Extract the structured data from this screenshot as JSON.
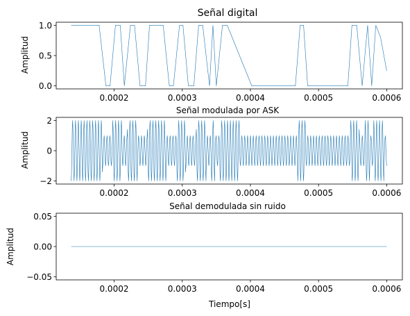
{
  "chart_data": [
    {
      "type": "line",
      "title": "Señal digital",
      "xlabel": "",
      "ylabel": "Amplitud",
      "xlim": [
        0.000115,
        0.000623
      ],
      "ylim": [
        -0.05,
        1.05
      ],
      "xticks": [
        "0.0002",
        "0.0003",
        "0.0004",
        "0.0005",
        "0.0006"
      ],
      "xtick_values": [
        0.0002,
        0.0003,
        0.0004,
        0.0005,
        0.0006
      ],
      "yticks": [
        "0.0",
        "0.5",
        "1.0"
      ],
      "ytick_values": [
        0.0,
        0.5,
        1.0
      ],
      "color": "#1f77b4",
      "series": [
        {
          "x": [
            0.000137,
            0.000178,
            0.000188,
            0.000194,
            0.000202,
            0.000209,
            0.000215,
            0.000224,
            0.00023,
            0.000238,
            0.000246,
            0.000252,
            0.000272,
            0.000281,
            0.000287,
            0.000296,
            0.000301,
            0.000309,
            0.000317,
            0.000324,
            0.00033,
            0.00034,
            0.000345,
            0.00035,
            0.000359,
            0.000366,
            0.000402,
            0.00041,
            0.000466,
            0.000473,
            0.000478,
            0.000484,
            0.000543,
            0.000549,
            0.000556,
            0.000564,
            0.000572,
            0.000578,
            0.000584,
            0.000591,
            0.0006
          ],
          "y": [
            1,
            1,
            0,
            0,
            1,
            1,
            0,
            1,
            1,
            0,
            0,
            1,
            1,
            0,
            0,
            1,
            1,
            0,
            0,
            1,
            1,
            0,
            1,
            0,
            1,
            1,
            0,
            0,
            0,
            1,
            1,
            0,
            0,
            1,
            1,
            0,
            1,
            0,
            1,
            0.8,
            0.25
          ]
        }
      ]
    },
    {
      "type": "line",
      "title": "Señal modulada por ASK",
      "xlabel": "",
      "ylabel": "Amplitud",
      "xlim": [
        0.000115,
        0.000623
      ],
      "ylim": [
        -2.2,
        2.2
      ],
      "xticks": [
        "0.0002",
        "0.0003",
        "0.0004",
        "0.0005",
        "0.0006"
      ],
      "xtick_values": [
        0.0002,
        0.0003,
        0.0004,
        0.0005,
        0.0006
      ],
      "yticks": [
        "−2",
        "0",
        "2"
      ],
      "ytick_values": [
        -2,
        0,
        2
      ],
      "color": "#1f77b4",
      "carrier_oscillations": 110,
      "amplitude_high": 2,
      "amplitude_low": 1
    },
    {
      "type": "line",
      "title": "Señal demodulada sin ruido",
      "xlabel": "Tiempo[s]",
      "ylabel": "Amplitud",
      "xlim": [
        0.000115,
        0.000623
      ],
      "ylim": [
        -0.055,
        0.055
      ],
      "xticks": [
        "0.0002",
        "0.0003",
        "0.0004",
        "0.0005",
        "0.0006"
      ],
      "xtick_values": [
        0.0002,
        0.0003,
        0.0004,
        0.0005,
        0.0006
      ],
      "yticks": [
        "−0.05",
        "0.00",
        "0.05"
      ],
      "ytick_values": [
        -0.05,
        0.0,
        0.05
      ],
      "color": "#1f77b4",
      "series": [
        {
          "x": [
            0.000137,
            0.0006
          ],
          "y": [
            0,
            0
          ]
        }
      ]
    }
  ]
}
